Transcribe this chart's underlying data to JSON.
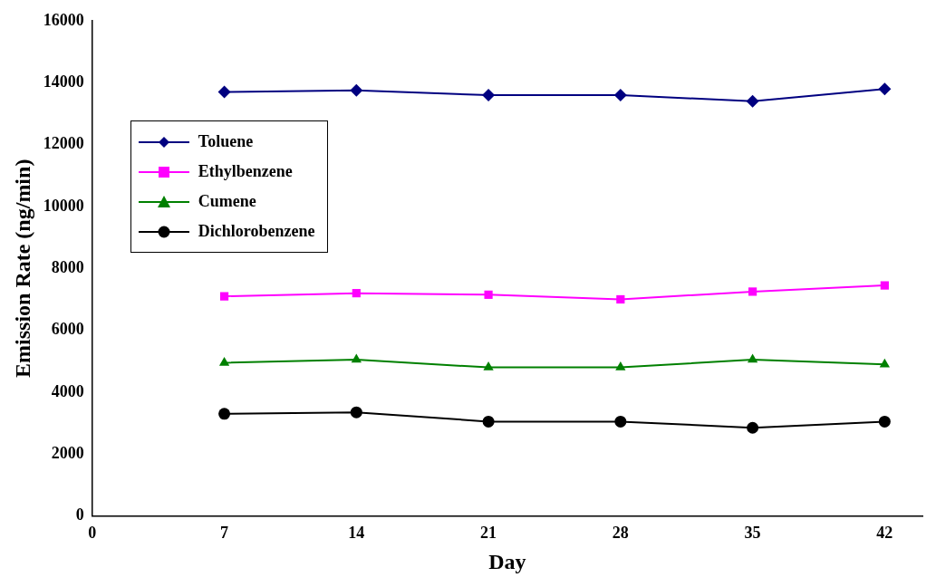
{
  "chart_data": {
    "type": "line",
    "xlabel": "Day",
    "ylabel": "Emission Rate (ng/min)",
    "x": [
      7,
      14,
      21,
      28,
      35,
      42
    ],
    "xlim": [
      0,
      44
    ],
    "xticks": [
      0,
      7,
      14,
      21,
      28,
      35,
      42
    ],
    "ylim": [
      0,
      16000
    ],
    "yticks": [
      0,
      2000,
      4000,
      6000,
      8000,
      10000,
      12000,
      14000,
      16000
    ],
    "grid": false,
    "legend": "top left",
    "series": [
      {
        "name": "Toluene",
        "color": "#000080",
        "marker": "diamond",
        "values": [
          13700,
          13750,
          13600,
          13600,
          13400,
          13800
        ]
      },
      {
        "name": "Ethylbenzene",
        "color": "#ff00ff",
        "marker": "square",
        "values": [
          7100,
          7200,
          7150,
          7000,
          7250,
          7450
        ]
      },
      {
        "name": "Cumene",
        "color": "#008000",
        "marker": "triangle",
        "values": [
          4950,
          5050,
          4800,
          4800,
          5050,
          4900
        ]
      },
      {
        "name": "Dichlorobenzene",
        "color": "#000000",
        "marker": "circle",
        "values": [
          3300,
          3350,
          3050,
          3050,
          2850,
          3050
        ]
      }
    ]
  }
}
